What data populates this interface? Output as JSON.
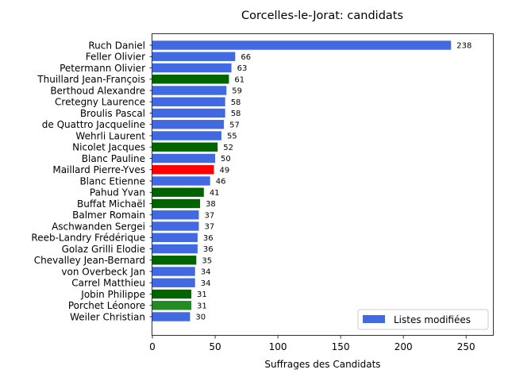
{
  "chart_data": {
    "type": "bar",
    "orientation": "horizontal",
    "title": "Corcelles-le-Jorat: candidats",
    "xlabel": "Suffrages des Candidats",
    "ylabel": "",
    "xlim": [
      0,
      272
    ],
    "xticks": [
      0,
      50,
      100,
      150,
      200,
      250
    ],
    "legend": {
      "label": "Listes modifiées",
      "color": "#4169E1",
      "position": "lower-right"
    },
    "bars": [
      {
        "name": "Ruch Daniel",
        "value": 238,
        "color": "#4169E1"
      },
      {
        "name": "Feller Olivier",
        "value": 66,
        "color": "#4169E1"
      },
      {
        "name": "Petermann Olivier",
        "value": 63,
        "color": "#4169E1"
      },
      {
        "name": "Thuillard Jean-François",
        "value": 61,
        "color": "#006400"
      },
      {
        "name": "Berthoud Alexandre",
        "value": 59,
        "color": "#4169E1"
      },
      {
        "name": "Cretegny Laurence",
        "value": 58,
        "color": "#4169E1"
      },
      {
        "name": "Broulis Pascal",
        "value": 58,
        "color": "#4169E1"
      },
      {
        "name": "de Quattro Jacqueline",
        "value": 57,
        "color": "#4169E1"
      },
      {
        "name": "Wehrli Laurent",
        "value": 55,
        "color": "#4169E1"
      },
      {
        "name": "Nicolet Jacques",
        "value": 52,
        "color": "#006400"
      },
      {
        "name": "Blanc Pauline",
        "value": 50,
        "color": "#4169E1"
      },
      {
        "name": "Maillard Pierre-Yves",
        "value": 49,
        "color": "#FF0000"
      },
      {
        "name": "Blanc Etienne",
        "value": 46,
        "color": "#4169E1"
      },
      {
        "name": "Pahud Yvan",
        "value": 41,
        "color": "#006400"
      },
      {
        "name": "Buffat Michaël",
        "value": 38,
        "color": "#006400"
      },
      {
        "name": "Balmer Romain",
        "value": 37,
        "color": "#4169E1"
      },
      {
        "name": "Aschwanden Sergei",
        "value": 37,
        "color": "#4169E1"
      },
      {
        "name": "Reeb-Landry Frédérique",
        "value": 36,
        "color": "#4169E1"
      },
      {
        "name": "Golaz Grilli Elodie",
        "value": 36,
        "color": "#4169E1"
      },
      {
        "name": "Chevalley Jean-Bernard",
        "value": 35,
        "color": "#006400"
      },
      {
        "name": "von Overbeck Jan",
        "value": 34,
        "color": "#4169E1"
      },
      {
        "name": "Carrel Matthieu",
        "value": 34,
        "color": "#4169E1"
      },
      {
        "name": "Jobin Philippe",
        "value": 31,
        "color": "#006400"
      },
      {
        "name": "Porchet Léonore",
        "value": 31,
        "color": "#228B22"
      },
      {
        "name": "Weiler Christian",
        "value": 30,
        "color": "#4169E1"
      }
    ]
  }
}
